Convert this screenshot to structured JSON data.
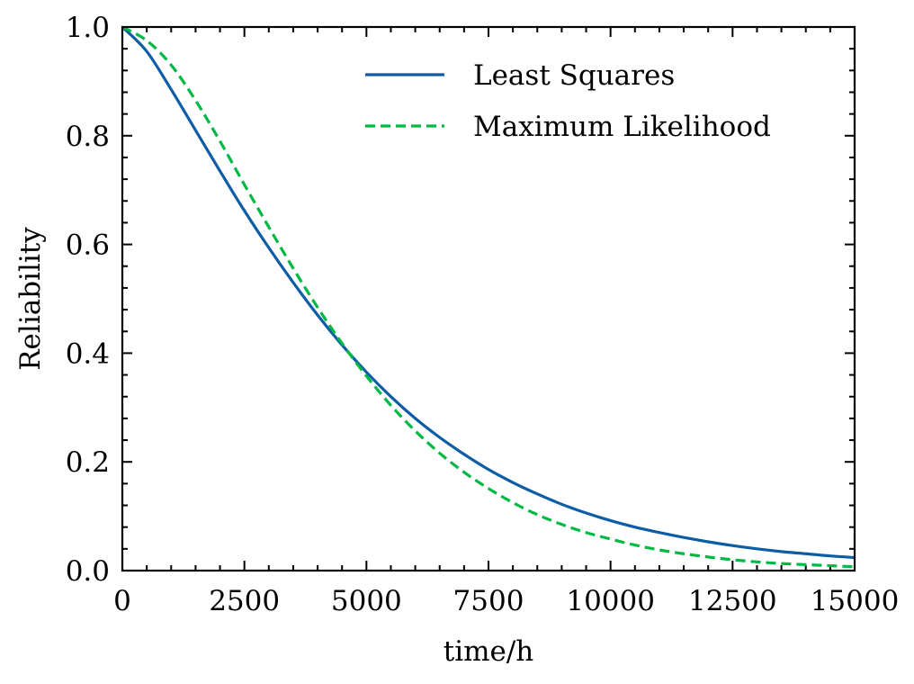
{
  "chart_data": {
    "type": "line",
    "title": "",
    "xlabel": "time/h",
    "ylabel": "Reliability",
    "xlim": [
      0,
      15000
    ],
    "ylim": [
      0.0,
      1.0
    ],
    "x_ticks": [
      0,
      2500,
      5000,
      7500,
      10000,
      12500,
      15000
    ],
    "x_tick_labels": [
      "0",
      "2500",
      "5000",
      "7500",
      "10000",
      "12500",
      "15000"
    ],
    "y_ticks": [
      0.0,
      0.2,
      0.4,
      0.6,
      0.8,
      1.0
    ],
    "y_tick_labels": [
      "0.0",
      "0.2",
      "0.4",
      "0.6",
      "0.8",
      "1.0"
    ],
    "grid": false,
    "legend_position": "top-right",
    "x": [
      0,
      500,
      1000,
      1500,
      2000,
      2500,
      3000,
      3500,
      4000,
      4500,
      5000,
      5500,
      6000,
      6500,
      7000,
      7500,
      8000,
      8500,
      9000,
      9500,
      10000,
      10500,
      11000,
      11500,
      12000,
      12500,
      13000,
      13500,
      14000,
      14500,
      15000
    ],
    "series": [
      {
        "name": "Least Squares",
        "color": "#0C5DA5",
        "style": "solid",
        "values": [
          1.0,
          0.955,
          0.885,
          0.81,
          0.735,
          0.662,
          0.594,
          0.53,
          0.47,
          0.415,
          0.365,
          0.32,
          0.28,
          0.245,
          0.214,
          0.186,
          0.162,
          0.141,
          0.122,
          0.106,
          0.092,
          0.08,
          0.07,
          0.061,
          0.053,
          0.046,
          0.04,
          0.035,
          0.031,
          0.027,
          0.024
        ]
      },
      {
        "name": "Maximum Likelihood",
        "color": "#00B945",
        "style": "dashed",
        "values": [
          1.0,
          0.975,
          0.93,
          0.865,
          0.79,
          0.71,
          0.632,
          0.556,
          0.484,
          0.418,
          0.358,
          0.304,
          0.257,
          0.216,
          0.181,
          0.151,
          0.125,
          0.103,
          0.085,
          0.07,
          0.058,
          0.047,
          0.038,
          0.031,
          0.025,
          0.02,
          0.016,
          0.013,
          0.011,
          0.009,
          0.007
        ]
      }
    ]
  }
}
